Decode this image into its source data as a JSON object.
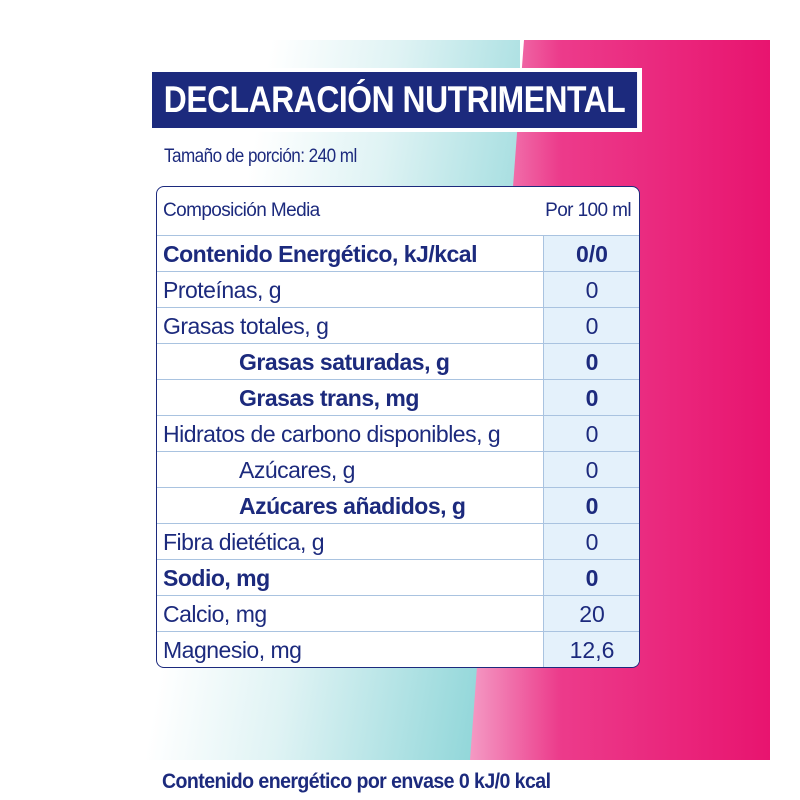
{
  "title": "DECLARACIÓN NUTRIMENTAL",
  "serving_size": "Tamaño de porción: 240 ml",
  "table": {
    "header_label": "Composición Media",
    "header_value": "Por 100 ml",
    "rows": [
      {
        "label": "Contenido Energético, kJ/kcal",
        "value": "0/0"
      },
      {
        "label": "Proteínas, g",
        "value": "0"
      },
      {
        "label": "Grasas totales, g",
        "value": "0"
      },
      {
        "label": "Grasas saturadas, g",
        "value": "0"
      },
      {
        "label": "Grasas trans, mg",
        "value": "0"
      },
      {
        "label": "Hidratos de carbono disponibles, g",
        "value": "0"
      },
      {
        "label": "Azúcares, g",
        "value": "0"
      },
      {
        "label": "Azúcares añadidos, g",
        "value": "0"
      },
      {
        "label": "Fibra dietética, g",
        "value": "0"
      },
      {
        "label": "Sodio, mg",
        "value": "0"
      },
      {
        "label": "Calcio, mg",
        "value": "20"
      },
      {
        "label": "Magnesio, mg",
        "value": "12,6"
      }
    ]
  },
  "footer": "Contenido energético por envase 0 kJ/0 kcal",
  "colors": {
    "primary": "#1c2a7d",
    "accent_pink": "#e8146f",
    "accent_teal": "#7fd0d3",
    "column_shade": "#e4f1fb"
  }
}
